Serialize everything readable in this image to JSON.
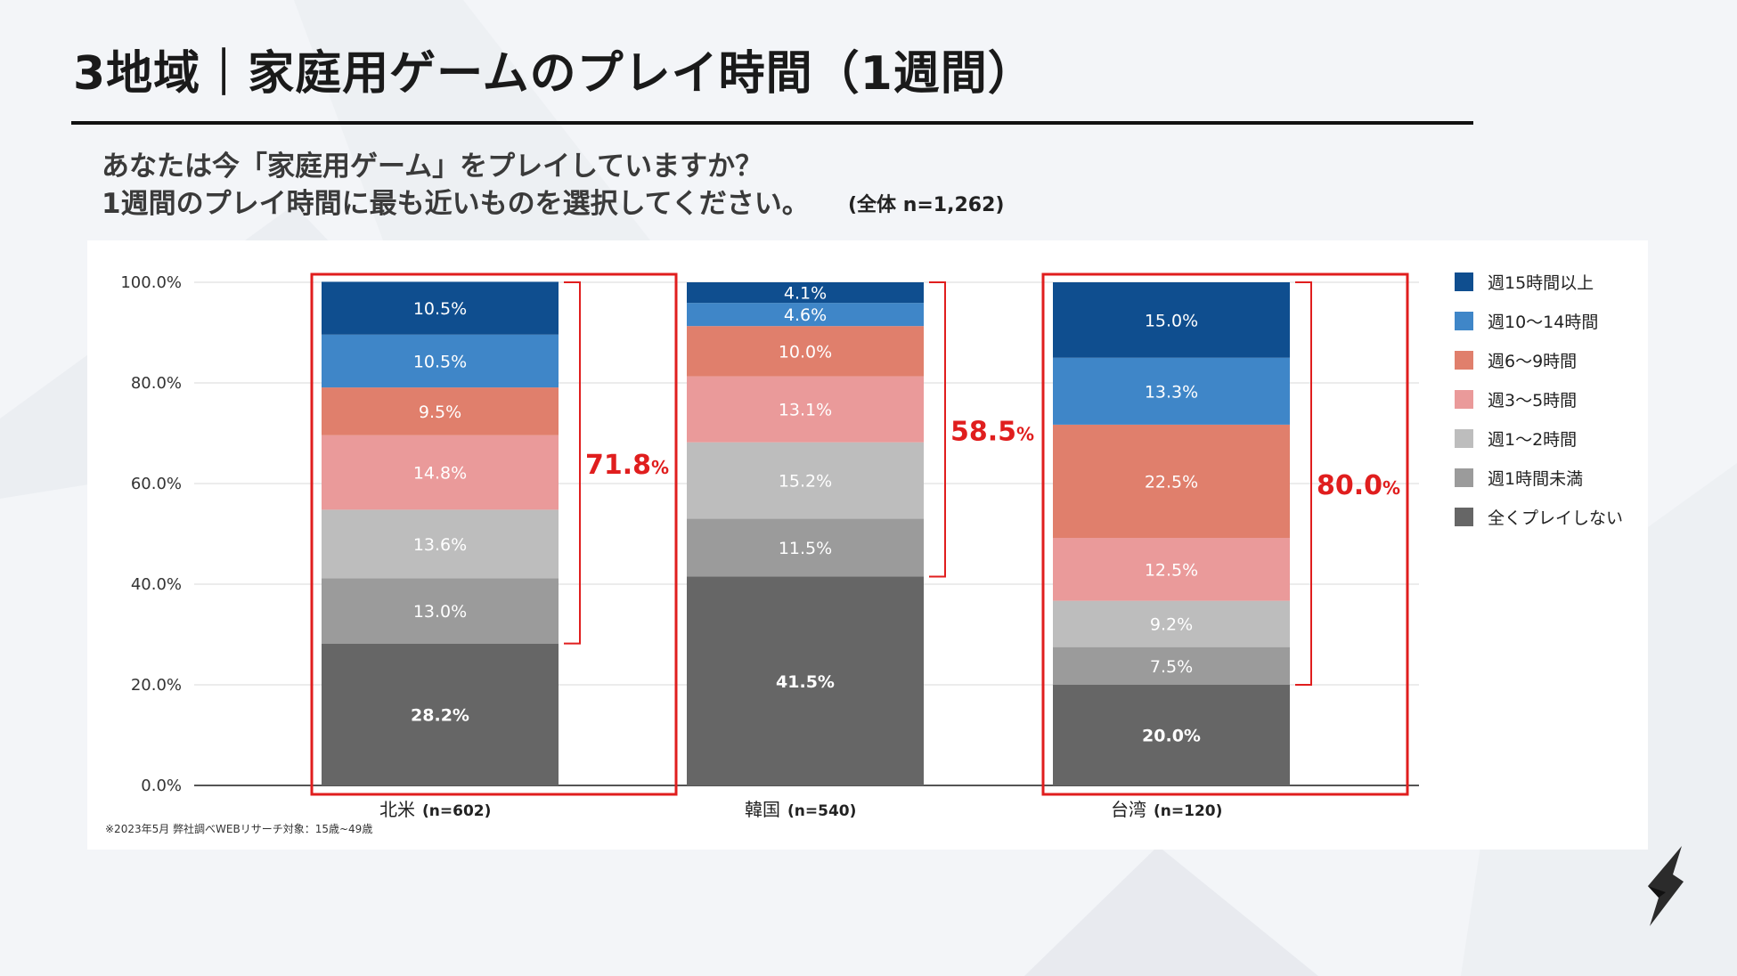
{
  "header": {
    "title": "3地域｜家庭用ゲームのプレイ時間（1週間）",
    "question_line1": "あなたは今「家庭用ゲーム」をプレイしていますか？",
    "question_line2": "1週間のプレイ時間に最も近いものを選択してください。",
    "sample_note": "(全体 n=1,262)"
  },
  "footnote": "※2023年5月 弊社調べWEBリサーチ対象：15歳~49歳",
  "colors": {
    "series": [
      "#666666",
      "#9b9b9b",
      "#bdbdbd",
      "#ea9a9a",
      "#e07f6c",
      "#3f86c8",
      "#0f4e8f"
    ],
    "highlight": "#e01e1e",
    "grid": "#d9d9d9"
  },
  "chart_data": {
    "type": "bar",
    "stacked": true,
    "categories": [
      "北米",
      "韓国",
      "台湾"
    ],
    "category_samples": [
      "(n=602)",
      "(n=540)",
      "(n=120)"
    ],
    "yticks": [
      "0.0%",
      "20.0%",
      "40.0%",
      "60.0%",
      "80.0%",
      "100.0%"
    ],
    "ylim": [
      0,
      100
    ],
    "series": [
      {
        "name": "全くプレイしない",
        "values": [
          28.2,
          41.5,
          20.0
        ],
        "labels": [
          "28.2%",
          "41.5%",
          "20.0%"
        ]
      },
      {
        "name": "週1時間未満",
        "values": [
          13.0,
          11.5,
          7.5
        ],
        "labels": [
          "13.0%",
          "11.5%",
          "7.5%"
        ]
      },
      {
        "name": "週1～2時間",
        "values": [
          13.6,
          15.2,
          9.2
        ],
        "labels": [
          "13.6%",
          "15.2%",
          "9.2%"
        ]
      },
      {
        "name": "週3～5時間",
        "values": [
          14.8,
          13.1,
          12.5
        ],
        "labels": [
          "14.8%",
          "13.1%",
          "12.5%"
        ]
      },
      {
        "name": "週6～9時間",
        "values": [
          9.5,
          10.0,
          22.5
        ],
        "labels": [
          "9.5%",
          "10.0%",
          "22.5%"
        ]
      },
      {
        "name": "週10～14時間",
        "values": [
          10.5,
          4.6,
          13.3
        ],
        "labels": [
          "10.5%",
          "4.6%",
          "13.3%"
        ]
      },
      {
        "name": "週15時間以上",
        "values": [
          10.5,
          4.1,
          15.0
        ],
        "labels": [
          "10.5%",
          "4.1%",
          "15.0%"
        ]
      }
    ],
    "legend_order": [
      "週15時間以上",
      "週10～14時間",
      "週6～9時間",
      "週3～5時間",
      "週1～2時間",
      "週1時間未満",
      "全くプレイしない"
    ],
    "annotations": [
      {
        "category": "北米",
        "value": 71.8,
        "number": "71.8",
        "unit": "%",
        "boxed": true
      },
      {
        "category": "韓国",
        "value": 58.5,
        "number": "58.5",
        "unit": "%",
        "boxed": false
      },
      {
        "category": "台湾",
        "value": 80.0,
        "number": "80.0",
        "unit": "%",
        "boxed": true
      }
    ]
  }
}
